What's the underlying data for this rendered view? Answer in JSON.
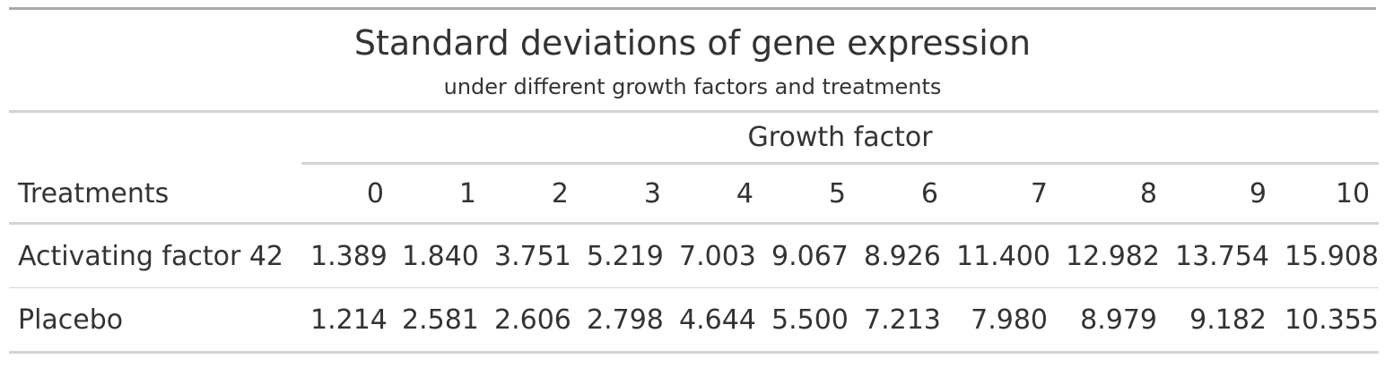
{
  "table": {
    "title": "Standard deviations of gene expression",
    "subtitle": "under different growth factors and treatments",
    "spanner": "Growth factor",
    "stub_header": "Treatments",
    "columns": [
      "0",
      "1",
      "2",
      "3",
      "4",
      "5",
      "6",
      "7",
      "8",
      "9",
      "10"
    ],
    "rows": [
      {
        "label": "Activating factor 42",
        "values": [
          "1.389",
          "1.840",
          "3.751",
          "5.219",
          "7.003",
          "9.067",
          "8.926",
          "11.400",
          "12.982",
          "13.754",
          "15.908"
        ]
      },
      {
        "label": "Placebo",
        "values": [
          "1.214",
          "2.581",
          "2.606",
          "2.798",
          "4.644",
          "5.500",
          "7.213",
          "7.980",
          "8.979",
          "9.182",
          "10.355"
        ]
      }
    ]
  }
}
